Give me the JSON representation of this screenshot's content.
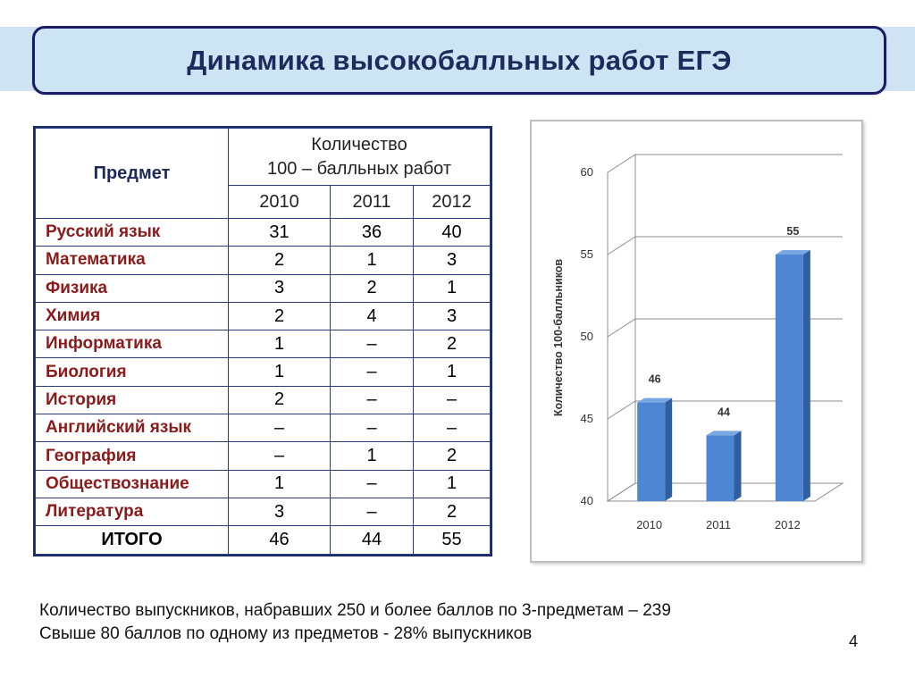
{
  "slide": {
    "title": "Динамика высокобалльных работ ЕГЭ",
    "page_number": "4"
  },
  "table": {
    "header_subject": "Предмет",
    "header_count_line1": "Количество",
    "header_count_line2": "100 – балльных работ",
    "years": [
      "2010",
      "2011",
      "2012"
    ],
    "rows": [
      {
        "subject": "Русский язык",
        "values": [
          "31",
          "36",
          "40"
        ]
      },
      {
        "subject": "Математика",
        "values": [
          "2",
          "1",
          "3"
        ]
      },
      {
        "subject": "Физика",
        "values": [
          "3",
          "2",
          "1"
        ]
      },
      {
        "subject": "Химия",
        "values": [
          "2",
          "4",
          "3"
        ]
      },
      {
        "subject": "Информатика",
        "values": [
          "1",
          "–",
          "2"
        ]
      },
      {
        "subject": "Биология",
        "values": [
          "1",
          "–",
          "1"
        ]
      },
      {
        "subject": "История",
        "values": [
          "2",
          "–",
          "–"
        ]
      },
      {
        "subject": "Английский язык",
        "values": [
          "–",
          "–",
          "–"
        ]
      },
      {
        "subject": "География",
        "values": [
          "–",
          "1",
          "2"
        ]
      },
      {
        "subject": "Обществознание",
        "values": [
          "1",
          "–",
          "1"
        ]
      },
      {
        "subject": "Литература",
        "values": [
          "3",
          "–",
          "2"
        ]
      }
    ],
    "total": {
      "label": "ИТОГО",
      "values": [
        "46",
        "44",
        "55"
      ]
    }
  },
  "chart_data": {
    "type": "bar",
    "categories": [
      "2010",
      "2011",
      "2012"
    ],
    "values": [
      46,
      44,
      55
    ],
    "ylabel": "Количество 100-балльников",
    "xlabel": "",
    "ylim": [
      40,
      60
    ],
    "yticks": [
      40,
      45,
      50,
      55,
      60
    ],
    "grid": true,
    "style": "3d-column",
    "bar_color": "#4f86d4",
    "data_labels": true
  },
  "notes": {
    "line1": "Количество выпускников, набравших 250 и более баллов по 3-предметам – 239",
    "line2": "Свыше 80 баллов по одному из предметов - 28% выпускников"
  }
}
